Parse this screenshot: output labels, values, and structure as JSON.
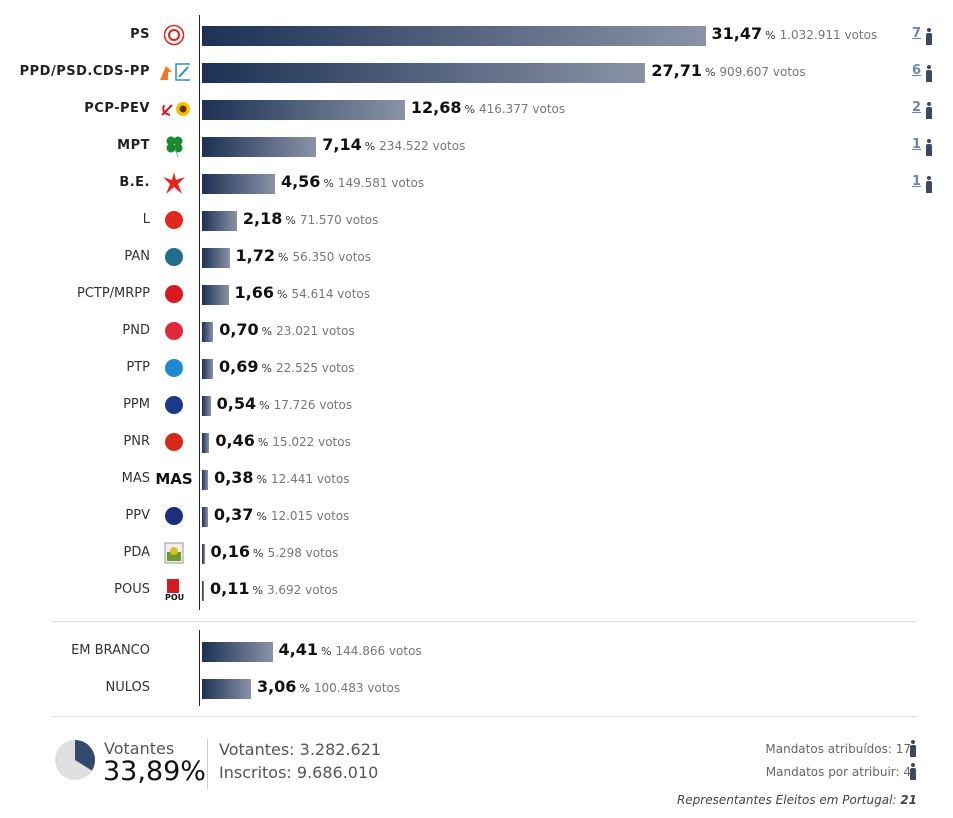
{
  "chart_data": {
    "type": "bar",
    "orientation": "horizontal",
    "unit": "%",
    "parties": [
      {
        "name": "PS",
        "pct": "31,47",
        "value": 31.47,
        "votes": "1.032.911 votos",
        "seats": "7",
        "bold": true,
        "logo": "ps-logo-icon",
        "color": "#e2231a"
      },
      {
        "name": "PPD/PSD.CDS-PP",
        "pct": "27,71",
        "value": 27.71,
        "votes": "909.607 votos",
        "seats": "6",
        "bold": true,
        "logo": "psd-cds-logo-icon",
        "color": "#f47a20"
      },
      {
        "name": "PCP-PEV",
        "pct": "12,68",
        "value": 12.68,
        "votes": "416.377 votos",
        "seats": "2",
        "bold": true,
        "logo": "pcp-pev-logo-icon",
        "color": "#d71920"
      },
      {
        "name": "MPT",
        "pct": "7,14",
        "value": 7.14,
        "votes": "234.522 votos",
        "seats": "1",
        "bold": true,
        "logo": "clover-logo-icon",
        "color": "#1a8a2e"
      },
      {
        "name": "B.E.",
        "pct": "4,56",
        "value": 4.56,
        "votes": "149.581 votos",
        "seats": "1",
        "bold": true,
        "logo": "be-star-logo-icon",
        "color": "#e8231a"
      },
      {
        "name": "L",
        "pct": "2,18",
        "value": 2.18,
        "votes": "71.570 votos",
        "logo": "poppy-logo-icon",
        "color": "#e0281c"
      },
      {
        "name": "PAN",
        "pct": "1,72",
        "value": 1.72,
        "votes": "56.350 votos",
        "logo": "pan-logo-icon",
        "color": "#1f6e8c"
      },
      {
        "name": "PCTP/MRPP",
        "pct": "1,66",
        "value": 1.66,
        "votes": "54.614 votos",
        "logo": "pctp-logo-icon",
        "color": "#d71920"
      },
      {
        "name": "PND",
        "pct": "0,70",
        "value": 0.7,
        "votes": "23.021 votos",
        "logo": "heart-logo-icon",
        "color": "#e0283c"
      },
      {
        "name": "PTP",
        "pct": "0,69",
        "value": 0.69,
        "votes": "22.525 votos",
        "logo": "ptp-logo-icon",
        "color": "#1e88d0"
      },
      {
        "name": "PPM",
        "pct": "0,54",
        "value": 0.54,
        "votes": "17.726 votos",
        "logo": "ppm-logo-icon",
        "color": "#1c3a8c"
      },
      {
        "name": "PNR",
        "pct": "0,46",
        "value": 0.46,
        "votes": "15.022 votos",
        "logo": "pnr-flame-logo-icon",
        "color": "#d7281c"
      },
      {
        "name": "MAS",
        "pct": "0,38",
        "value": 0.38,
        "votes": "12.441 votos",
        "logo": "mas-logo-icon",
        "color": "#111111"
      },
      {
        "name": "PPV",
        "pct": "0,37",
        "value": 0.37,
        "votes": "12.015 votos",
        "logo": "ppv-logo-icon",
        "color": "#1c2f7c"
      },
      {
        "name": "PDA",
        "pct": "0,16",
        "value": 0.16,
        "votes": "5.298 votos",
        "logo": "pda-logo-icon",
        "color": "#d8c020"
      },
      {
        "name": "POUS",
        "pct": "0,11",
        "value": 0.11,
        "votes": "3.692 votos",
        "logo": "pous-logo-icon",
        "color": "#d71920"
      }
    ],
    "other": [
      {
        "name": "EM BRANCO",
        "pct": "4,41",
        "value": 4.41,
        "votes": "144.866 votos"
      },
      {
        "name": "NULOS",
        "pct": "3,06",
        "value": 3.06,
        "votes": "100.483 votos"
      }
    ],
    "pct_symbol": "%",
    "xlim": [
      0,
      31.47
    ]
  },
  "footer": {
    "turnout_label": "Votantes",
    "turnout_pct": "33,89%",
    "turnout_value": 33.89,
    "votantes": "Votantes: 3.282.621",
    "inscritos": "Inscritos: 9.686.010",
    "mandatos_atribuidos": "Mandatos atribuídos: 17",
    "mandatos_por_atribuir": "Mandatos por atribuir: 4",
    "representantes_label": "Representantes Eleitos em Portugal:",
    "representantes_total": "21",
    "pie_color": "#34496e",
    "pie_bg": "#e0e0e0"
  }
}
